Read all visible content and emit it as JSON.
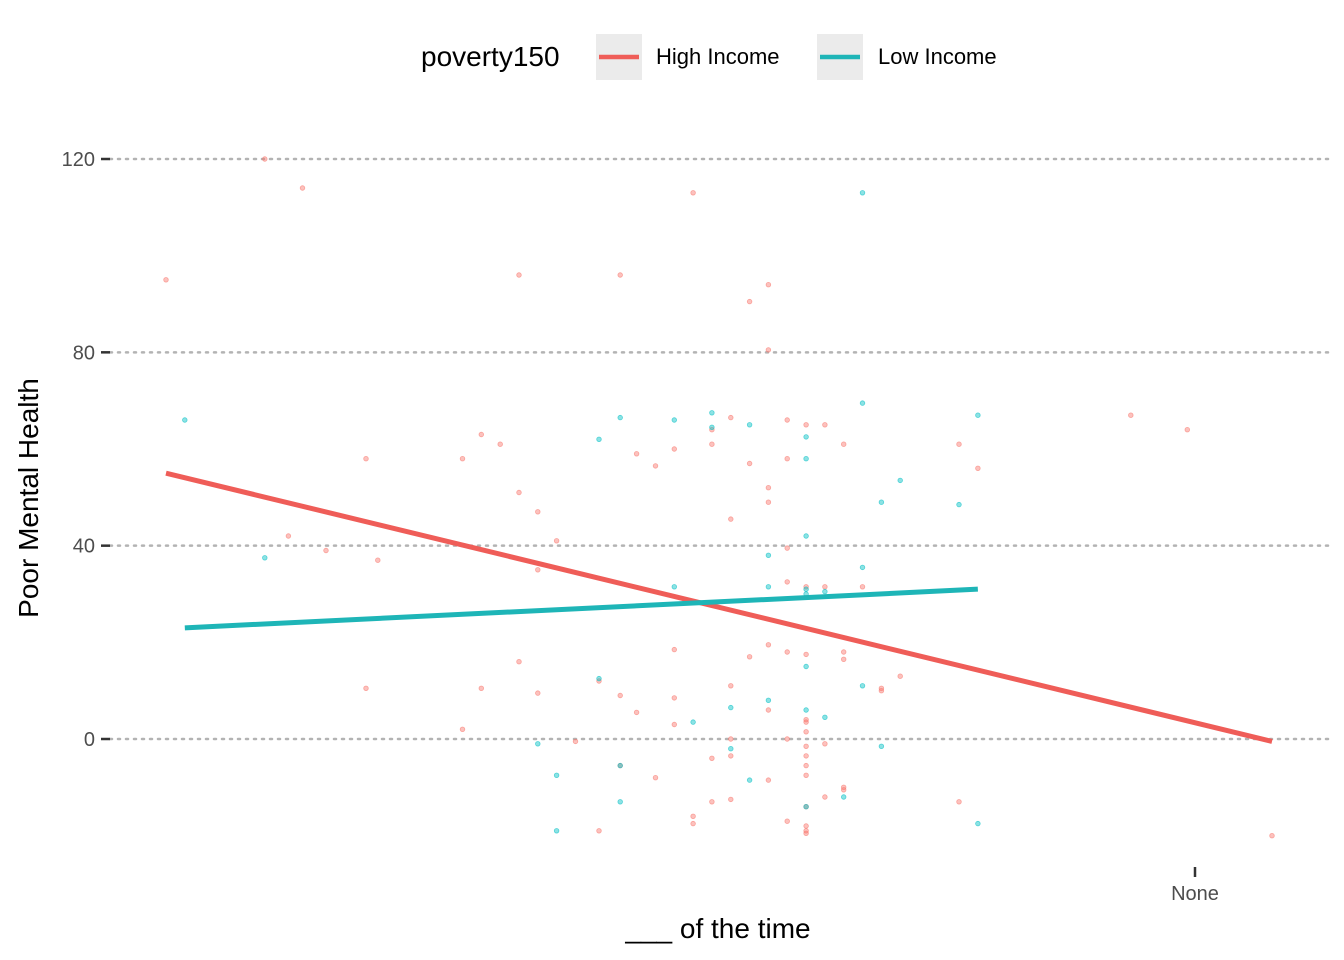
{
  "chart_data": {
    "type": "scatter",
    "title": "",
    "xlabel": "___ of the time",
    "ylabel": "Poor Mental Health",
    "x_ticks": [
      "None"
    ],
    "y_ticks": [
      0,
      40,
      80,
      120
    ],
    "ylim": [
      -27,
      131
    ],
    "legend": {
      "title": "poverty150",
      "position": "top"
    },
    "grid": "horizontal dotted",
    "series": [
      {
        "name": "High Income",
        "color": "#F8766D",
        "line_color": "#EF5D58",
        "fit_line": [
          [
            1.0,
            55
          ],
          [
            5.7,
            -0.5
          ]
        ],
        "points": [
          [
            1.0,
            95
          ],
          [
            1.42,
            120
          ],
          [
            1.58,
            114
          ],
          [
            1.52,
            42
          ],
          [
            1.68,
            39
          ],
          [
            1.85,
            58
          ],
          [
            1.9,
            37
          ],
          [
            1.85,
            10.5
          ],
          [
            2.26,
            58
          ],
          [
            2.26,
            2
          ],
          [
            2.34,
            63
          ],
          [
            2.42,
            61
          ],
          [
            2.34,
            10.5
          ],
          [
            2.5,
            96
          ],
          [
            2.5,
            51
          ],
          [
            2.5,
            16
          ],
          [
            2.58,
            47
          ],
          [
            2.58,
            35
          ],
          [
            2.58,
            9.5
          ],
          [
            2.66,
            41
          ],
          [
            2.74,
            -0.5
          ],
          [
            2.84,
            12
          ],
          [
            2.84,
            -19
          ],
          [
            2.93,
            96
          ],
          [
            2.93,
            9
          ],
          [
            2.93,
            -5.5
          ],
          [
            3.0,
            59
          ],
          [
            3.0,
            5.5
          ],
          [
            3.08,
            56.5
          ],
          [
            3.08,
            -8
          ],
          [
            3.16,
            60
          ],
          [
            3.16,
            18.5
          ],
          [
            3.16,
            8.5
          ],
          [
            3.16,
            3
          ],
          [
            3.24,
            113
          ],
          [
            3.24,
            -16
          ],
          [
            3.24,
            -17.5
          ],
          [
            3.32,
            61
          ],
          [
            3.32,
            64
          ],
          [
            3.32,
            -4
          ],
          [
            3.32,
            -13
          ],
          [
            3.4,
            66.5
          ],
          [
            3.4,
            45.5
          ],
          [
            3.4,
            11
          ],
          [
            3.4,
            0
          ],
          [
            3.4,
            -3.5
          ],
          [
            3.4,
            -12.5
          ],
          [
            3.48,
            90.5
          ],
          [
            3.48,
            57
          ],
          [
            3.48,
            17
          ],
          [
            3.56,
            94
          ],
          [
            3.56,
            52
          ],
          [
            3.56,
            49
          ],
          [
            3.56,
            19.5
          ],
          [
            3.56,
            6
          ],
          [
            3.56,
            -8.5
          ],
          [
            3.56,
            80.5
          ],
          [
            3.64,
            66
          ],
          [
            3.64,
            58
          ],
          [
            3.64,
            39.5
          ],
          [
            3.64,
            32.5
          ],
          [
            3.64,
            18
          ],
          [
            3.64,
            0
          ],
          [
            3.64,
            -17
          ],
          [
            3.72,
            65
          ],
          [
            3.72,
            31.5
          ],
          [
            3.72,
            17.5
          ],
          [
            3.72,
            3.5
          ],
          [
            3.72,
            -1.5
          ],
          [
            3.72,
            -5.5
          ],
          [
            3.72,
            -14
          ],
          [
            3.72,
            -18
          ],
          [
            3.72,
            -19
          ],
          [
            3.72,
            1.5
          ],
          [
            3.72,
            4
          ],
          [
            3.72,
            -3.5
          ],
          [
            3.72,
            -7.5
          ],
          [
            3.72,
            -19.5
          ],
          [
            3.8,
            65
          ],
          [
            3.8,
            31.5
          ],
          [
            3.8,
            -1
          ],
          [
            3.8,
            -12
          ],
          [
            3.88,
            61
          ],
          [
            3.88,
            18
          ],
          [
            3.88,
            -10.5
          ],
          [
            3.88,
            16.5
          ],
          [
            3.88,
            -10
          ],
          [
            3.96,
            31.5
          ],
          [
            4.04,
            10.5
          ],
          [
            4.04,
            10
          ],
          [
            4.12,
            13
          ],
          [
            4.37,
            61
          ],
          [
            4.37,
            -13
          ],
          [
            4.45,
            56
          ],
          [
            5.1,
            67
          ],
          [
            5.34,
            64
          ],
          [
            5.7,
            -20
          ]
        ]
      },
      {
        "name": "Low Income",
        "color": "#00BFC4",
        "line_color": "#1EB5B7",
        "fit_line": [
          [
            1.08,
            23
          ],
          [
            4.45,
            31
          ]
        ],
        "points": [
          [
            1.08,
            66
          ],
          [
            1.42,
            37.5
          ],
          [
            2.58,
            -1
          ],
          [
            2.66,
            -7.5
          ],
          [
            2.66,
            -19
          ],
          [
            2.84,
            62
          ],
          [
            2.84,
            12.5
          ],
          [
            2.93,
            66.5
          ],
          [
            2.93,
            -5.5
          ],
          [
            2.93,
            -13
          ],
          [
            3.16,
            66
          ],
          [
            3.16,
            31.5
          ],
          [
            3.24,
            3.5
          ],
          [
            3.32,
            67.5
          ],
          [
            3.32,
            64.5
          ],
          [
            3.4,
            6.5
          ],
          [
            3.4,
            -2
          ],
          [
            3.48,
            65
          ],
          [
            3.48,
            -8.5
          ],
          [
            3.56,
            38
          ],
          [
            3.56,
            31.5
          ],
          [
            3.56,
            8
          ],
          [
            3.72,
            62.5
          ],
          [
            3.72,
            58
          ],
          [
            3.72,
            42
          ],
          [
            3.72,
            31
          ],
          [
            3.72,
            30
          ],
          [
            3.72,
            15
          ],
          [
            3.72,
            6
          ],
          [
            3.72,
            -14
          ],
          [
            3.8,
            30.5
          ],
          [
            3.8,
            4.5
          ],
          [
            3.88,
            -12
          ],
          [
            3.96,
            113
          ],
          [
            3.96,
            69.5
          ],
          [
            3.96,
            35.5
          ],
          [
            3.96,
            11
          ],
          [
            4.04,
            49
          ],
          [
            4.04,
            -1.5
          ],
          [
            4.12,
            53.5
          ],
          [
            4.37,
            48.5
          ],
          [
            4.45,
            67
          ],
          [
            4.45,
            -17.5
          ]
        ]
      }
    ]
  }
}
